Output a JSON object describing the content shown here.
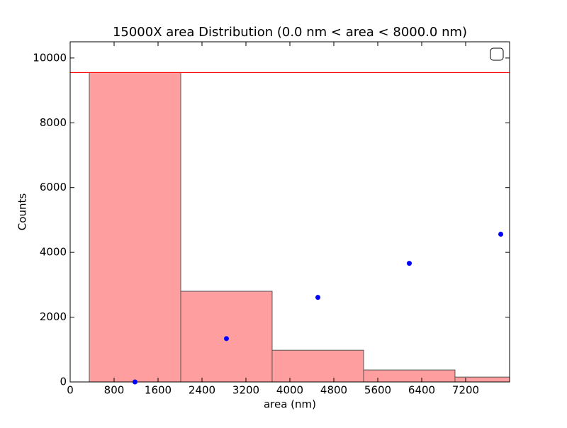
{
  "chart_data": {
    "type": "histogram",
    "title": "15000X area Distribution (0.0 nm < area < 8000.0  nm)",
    "x_label": "area (nm)",
    "y_label": "Counts",
    "bins": [
      348,
      2013,
      3677,
      5342,
      7006,
      8671
    ],
    "counts": [
      9550,
      2800,
      980,
      370,
      150
    ],
    "color": "#ff9999",
    "edge_color": "#555555",
    "hline": 9550,
    "hline_color": "#ff0000",
    "points": {
      "x": [
        1180,
        2845,
        4510,
        6174,
        7839
      ],
      "values": [
        0,
        1338,
        2610,
        3662,
        4561
      ],
      "color": "#0000ff"
    },
    "xlim": [
      0,
      8000
    ],
    "xticks": [
      0,
      800,
      1600,
      2400,
      3200,
      4000,
      4800,
      5600,
      6400,
      7200
    ],
    "ylim": [
      0,
      10500
    ],
    "yticks": [
      0,
      2000,
      4000,
      6000,
      8000,
      10000
    ]
  }
}
